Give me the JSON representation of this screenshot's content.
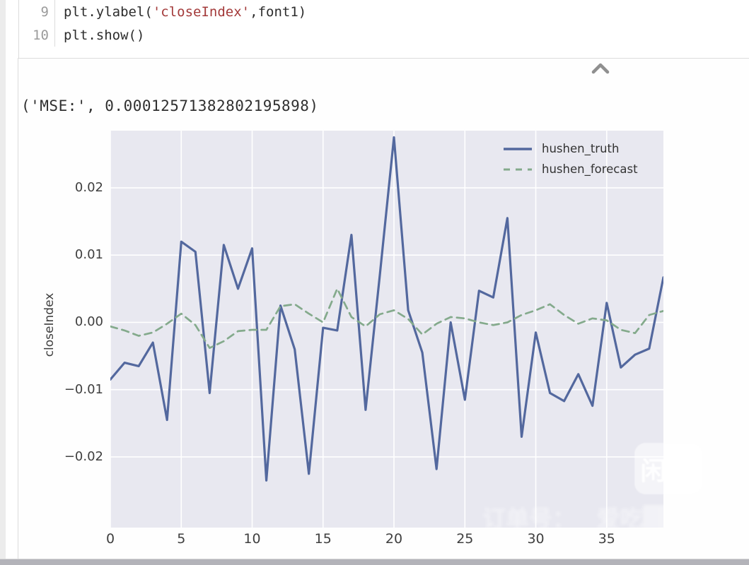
{
  "code_cell": {
    "lines": [
      {
        "number": "9",
        "segments": [
          [
            "plain",
            "plt.ylabel("
          ],
          [
            "string",
            "'closeIndex'"
          ],
          [
            "plain",
            ",font1)"
          ]
        ]
      },
      {
        "number": "10",
        "segments": [
          [
            "plain",
            "plt.show()"
          ]
        ]
      }
    ]
  },
  "output_cell": {
    "mse_text": "('MSE:', 0.00012571382802195898)"
  },
  "chart_data": {
    "type": "line",
    "title": "",
    "xlabel": "",
    "ylabel": "closeIndex",
    "x": [
      0,
      1,
      2,
      3,
      4,
      5,
      6,
      7,
      8,
      9,
      10,
      11,
      12,
      13,
      14,
      15,
      16,
      17,
      18,
      19,
      20,
      21,
      22,
      23,
      24,
      25,
      26,
      27,
      28,
      29,
      30,
      31,
      32,
      33,
      34,
      35,
      36,
      37,
      38,
      39
    ],
    "series": [
      {
        "name": "hushen_truth",
        "line_style": "solid",
        "color": "#53689e",
        "values": [
          -0.0085,
          -0.006,
          -0.0065,
          -0.003,
          -0.0145,
          0.012,
          0.0105,
          -0.0105,
          0.0115,
          0.005,
          0.011,
          -0.0235,
          0.0025,
          -0.004,
          -0.0225,
          -0.0008,
          -0.0012,
          0.013,
          -0.013,
          0.007,
          0.0275,
          0.0018,
          -0.0045,
          -0.0218,
          0.0,
          -0.0115,
          0.0047,
          0.0037,
          0.0155,
          -0.017,
          -0.0015,
          -0.0105,
          -0.0117,
          -0.0077,
          -0.0124,
          0.0029,
          -0.0067,
          -0.0048,
          -0.0039,
          0.0067
        ]
      },
      {
        "name": "hushen_forecast",
        "line_style": "dashed",
        "color": "#84aa8c",
        "values": [
          -0.0006,
          -0.0012,
          -0.002,
          -0.0015,
          -0.0002,
          0.0013,
          -0.0004,
          -0.0038,
          -0.0028,
          -0.0013,
          -0.0011,
          -0.0011,
          0.0024,
          0.0027,
          0.0013,
          0.0,
          0.005,
          0.0008,
          -0.0006,
          0.0012,
          0.0018,
          0.0005,
          -0.0018,
          -0.0002,
          0.0008,
          0.0006,
          0.0,
          -0.0004,
          0.0,
          0.0011,
          0.0018,
          0.0027,
          0.0011,
          -0.0002,
          0.0006,
          0.0003,
          -0.0011,
          -0.0016,
          0.0011,
          0.0017
        ]
      }
    ],
    "xlim": [
      0,
      39
    ],
    "ylim": [
      -0.0305,
      0.0285
    ],
    "x_ticks": [
      0,
      5,
      10,
      15,
      20,
      25,
      30,
      35
    ],
    "y_ticks": [
      0.02,
      0.01,
      0,
      -0.01,
      -0.02
    ],
    "grid": true,
    "grid_color": "#ffffff",
    "plot_bg": "#e8e8f0",
    "legend_position": "upper right"
  },
  "watermark": {
    "logo_text": "闲鱼",
    "caption_order_label": "订单号：",
    "caption_user": "爱吃████"
  },
  "colors": {
    "code_plain": "#2d2d2d",
    "code_string": "#a33a3a",
    "line_number": "#9b9b9b",
    "tick_text": "#3f3f3f",
    "chevron": "#8f8f8f"
  }
}
